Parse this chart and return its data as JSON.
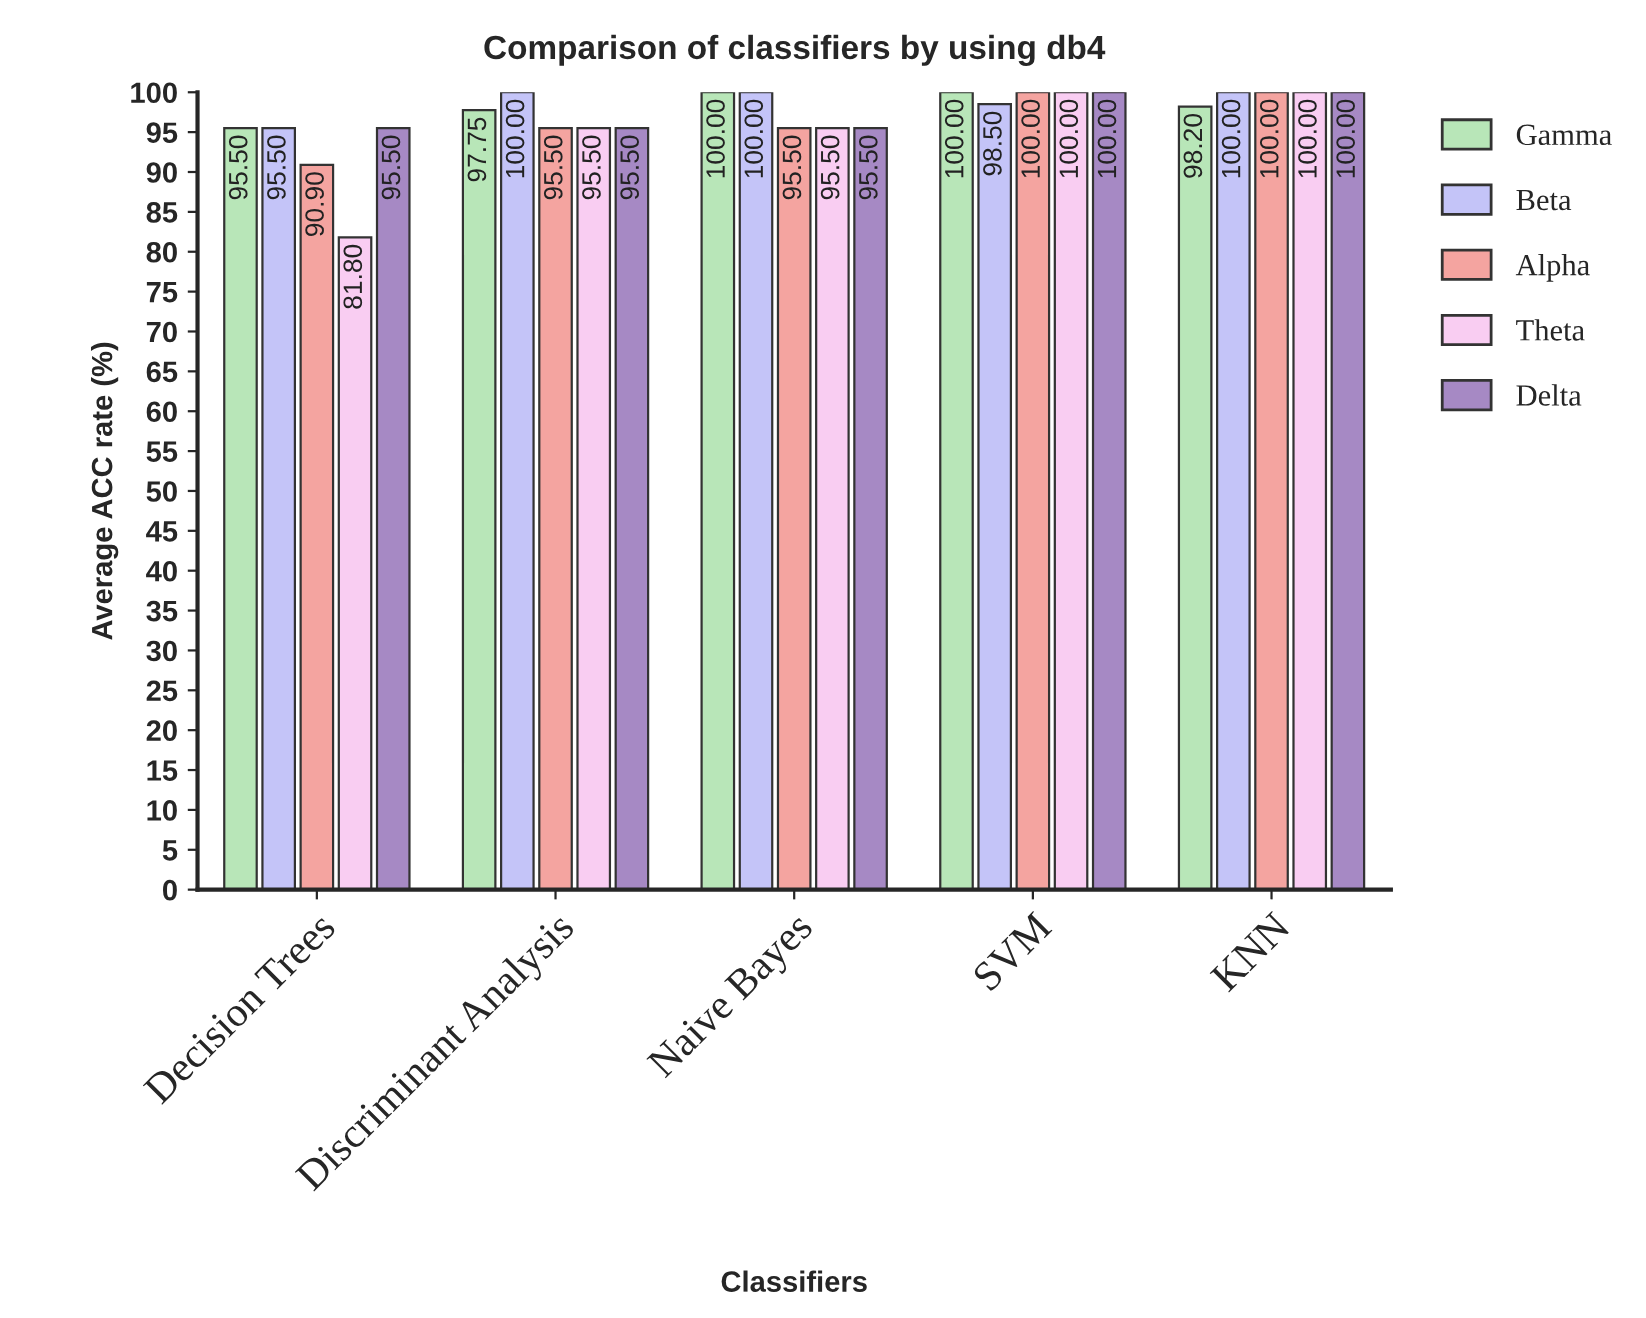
{
  "chart_data": {
    "type": "bar",
    "title": "Comparison of classifiers by using db4",
    "xlabel": "Classifiers",
    "ylabel": "Average ACC rate (%)",
    "categories": [
      "Decision Trees",
      "Discriminant Analysis",
      "Naive Bayes",
      "SVM",
      "KNN"
    ],
    "series": [
      {
        "name": "Gamma",
        "color": "#b8e6b8",
        "values": [
          95.5,
          97.75,
          100,
          100,
          98.2
        ],
        "value_labels": [
          "95.50",
          "97.75",
          "100.00",
          "100.00",
          "98.20"
        ]
      },
      {
        "name": "Beta",
        "color": "#c4c4f8",
        "values": [
          95.5,
          100,
          100,
          98.5,
          100
        ],
        "value_labels": [
          "95.50",
          "100.00",
          "100.00",
          "98.50",
          "100.00"
        ]
      },
      {
        "name": "Alpha",
        "color": "#f4a4a0",
        "values": [
          90.9,
          95.5,
          95.5,
          100,
          100
        ],
        "value_labels": [
          "90.90",
          "95.50",
          "95.50",
          "100.00",
          "100.00"
        ]
      },
      {
        "name": "Theta",
        "color": "#f9cdf2",
        "values": [
          81.8,
          95.5,
          95.5,
          100,
          100
        ],
        "value_labels": [
          "81.80",
          "95.50",
          "95.50",
          "100.00",
          "100.00"
        ]
      },
      {
        "name": "Delta",
        "color": "#a689c4",
        "values": [
          95.5,
          95.5,
          95.5,
          100,
          100
        ],
        "value_labels": [
          "95.50",
          "95.50",
          "95.50",
          "100.00",
          "100.00"
        ]
      }
    ],
    "ylim": [
      0,
      100
    ],
    "yticks": [
      0,
      5,
      10,
      15,
      20,
      25,
      30,
      35,
      40,
      45,
      50,
      55,
      60,
      65,
      70,
      75,
      80,
      85,
      90,
      95,
      100
    ],
    "grid": false,
    "legend": "top right"
  }
}
